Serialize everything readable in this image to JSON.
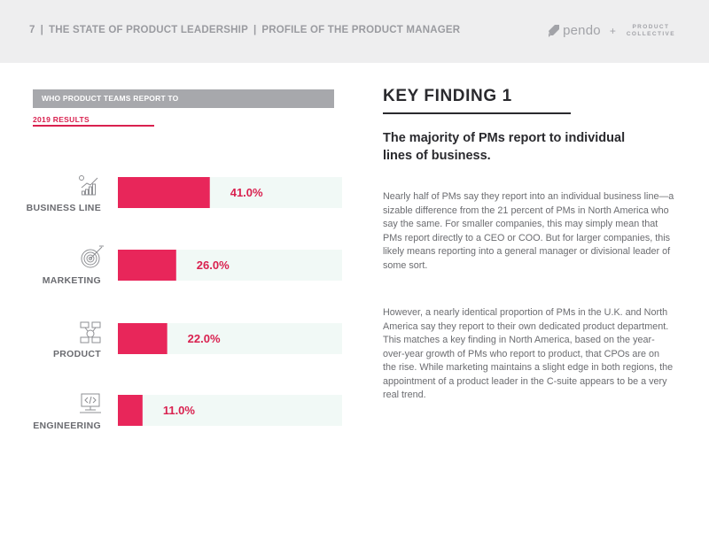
{
  "header": {
    "page_number": "7",
    "section": "THE STATE OF PRODUCT LEADERSHIP",
    "subsection": "PROFILE OF THE PRODUCT MANAGER",
    "brand_pendo": "pendo",
    "brand_plus": "+",
    "brand_pc_line1": "PRODUCT",
    "brand_pc_line2": "COLLECTIVE"
  },
  "chart_banner": "WHO PRODUCT TEAMS REPORT TO",
  "results_label": "2019 RESULTS",
  "chart_data": {
    "type": "bar",
    "orientation": "horizontal",
    "categories": [
      "BUSINESS LINE",
      "MARKETING",
      "PRODUCT",
      "ENGINEERING"
    ],
    "values": [
      41.0,
      26.0,
      22.0,
      11.0
    ],
    "value_labels": [
      "41.0%",
      "26.0%",
      "22.0%",
      "11.0%"
    ],
    "icons": [
      "chart-growth-icon",
      "target-icon",
      "process-flow-icon",
      "code-monitor-icon"
    ],
    "xlim": [
      0,
      100
    ],
    "bar_color": "#e8265a",
    "track_color": "#f1f9f6",
    "label_color": "#d9214f"
  },
  "key_finding": {
    "title": "KEY FINDING 1",
    "subtitle": "The majority of PMs report to individual lines of business.",
    "paragraph1": "Nearly half of PMs say they report into an individual business line—a sizable difference from the 21 percent of PMs in North America who say the same. For smaller companies, this may simply mean that PMs report directly to a CEO or COO. But for larger companies, this likely means reporting into a general manager or divisional leader of some sort.",
    "paragraph2": "However, a nearly identical proportion of PMs in the U.K. and North America say they report to their own dedicated product department. This matches a key finding in North America, based on the year-over-year growth of PMs who report to product, that CPOs are on the rise. While marketing maintains a slight edge in both regions, the appointment of a product leader in the C-suite appears to be a very real trend."
  }
}
